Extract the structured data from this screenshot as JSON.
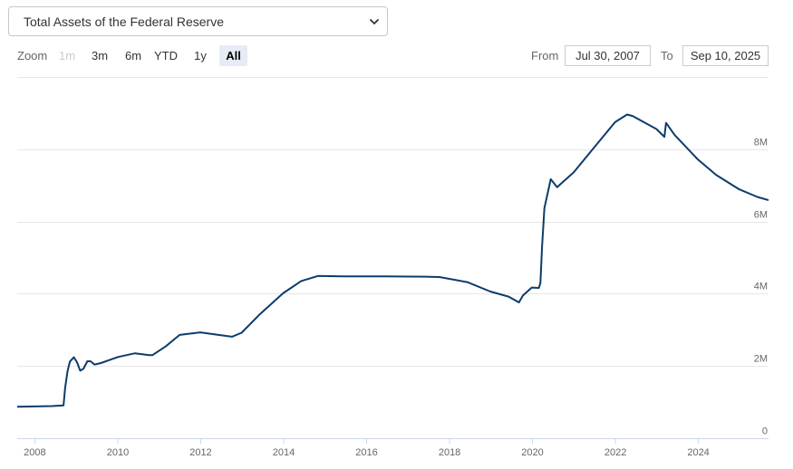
{
  "selector": {
    "selected": "Total Assets of the Federal Reserve",
    "icon": "chevron-down-icon"
  },
  "zoom": {
    "label": "Zoom",
    "buttons": [
      {
        "label": "1m",
        "state": "disabled"
      },
      {
        "label": "3m",
        "state": "normal"
      },
      {
        "label": "6m",
        "state": "normal"
      },
      {
        "label": "YTD",
        "state": "normal"
      },
      {
        "label": "1y",
        "state": "normal"
      },
      {
        "label": "All",
        "state": "active"
      }
    ]
  },
  "range": {
    "from_label": "From",
    "from_value": "Jul 30, 2007",
    "to_label": "To",
    "to_value": "Sep 10, 2025"
  },
  "colors": {
    "line": "#0b3c6b",
    "grid": "#e6e6e6",
    "active_button": "#e6ebf5"
  },
  "chart_data": {
    "type": "line",
    "title": "",
    "xlabel": "",
    "ylabel": "",
    "ylim": [
      0,
      10000000
    ],
    "grid": "horizontal",
    "y_axis_side": "right",
    "y_ticks": [
      0,
      2000000,
      4000000,
      6000000,
      8000000
    ],
    "y_tick_labels": [
      "0",
      "2M",
      "4M",
      "6M",
      "8M"
    ],
    "x_tick_labels": [
      "2008",
      "2010",
      "2012",
      "2014",
      "2016",
      "2018",
      "2020",
      "2022",
      "2024"
    ],
    "series": [
      {
        "points": [
          [
            "2007-07-30",
            870000
          ],
          [
            "2008-01-01",
            880000
          ],
          [
            "2008-06-01",
            890000
          ],
          [
            "2008-09-10",
            910000
          ],
          [
            "2008-09-24",
            1400000
          ],
          [
            "2008-10-15",
            1850000
          ],
          [
            "2008-11-05",
            2120000
          ],
          [
            "2008-12-10",
            2240000
          ],
          [
            "2009-01-07",
            2100000
          ],
          [
            "2009-02-04",
            1870000
          ],
          [
            "2009-03-04",
            1920000
          ],
          [
            "2009-04-08",
            2130000
          ],
          [
            "2009-05-06",
            2130000
          ],
          [
            "2009-06-10",
            2040000
          ],
          [
            "2009-08-05",
            2080000
          ],
          [
            "2009-10-07",
            2150000
          ],
          [
            "2010-01-06",
            2250000
          ],
          [
            "2010-06-02",
            2350000
          ],
          [
            "2010-10-06",
            2300000
          ],
          [
            "2010-11-03",
            2300000
          ],
          [
            "2011-03-02",
            2550000
          ],
          [
            "2011-06-29",
            2860000
          ],
          [
            "2011-12-28",
            2930000
          ],
          [
            "2012-06-27",
            2850000
          ],
          [
            "2012-10-03",
            2810000
          ],
          [
            "2012-12-26",
            2920000
          ],
          [
            "2013-06-05",
            3430000
          ],
          [
            "2013-12-25",
            4010000
          ],
          [
            "2014-06-04",
            4350000
          ],
          [
            "2014-10-29",
            4490000
          ],
          [
            "2015-06-03",
            4480000
          ],
          [
            "2016-06-01",
            4480000
          ],
          [
            "2017-06-07",
            4470000
          ],
          [
            "2017-10-04",
            4460000
          ],
          [
            "2018-06-06",
            4320000
          ],
          [
            "2018-12-26",
            4060000
          ],
          [
            "2019-06-05",
            3920000
          ],
          [
            "2019-09-04",
            3760000
          ],
          [
            "2019-10-09",
            3950000
          ],
          [
            "2019-12-25",
            4170000
          ],
          [
            "2020-02-26",
            4160000
          ],
          [
            "2020-03-11",
            4300000
          ],
          [
            "2020-03-25",
            5300000
          ],
          [
            "2020-04-15",
            6370000
          ],
          [
            "2020-06-10",
            7170000
          ],
          [
            "2020-08-05",
            6950000
          ],
          [
            "2020-12-30",
            7360000
          ],
          [
            "2021-06-02",
            7950000
          ],
          [
            "2021-12-29",
            8750000
          ],
          [
            "2022-04-13",
            8960000
          ],
          [
            "2022-06-01",
            8920000
          ],
          [
            "2022-12-28",
            8560000
          ],
          [
            "2023-03-08",
            8340000
          ],
          [
            "2023-03-22",
            8730000
          ],
          [
            "2023-06-07",
            8390000
          ],
          [
            "2023-12-27",
            7720000
          ],
          [
            "2024-06-05",
            7290000
          ],
          [
            "2024-12-25",
            6890000
          ],
          [
            "2025-06-04",
            6680000
          ],
          [
            "2025-09-10",
            6590000
          ]
        ]
      }
    ]
  }
}
